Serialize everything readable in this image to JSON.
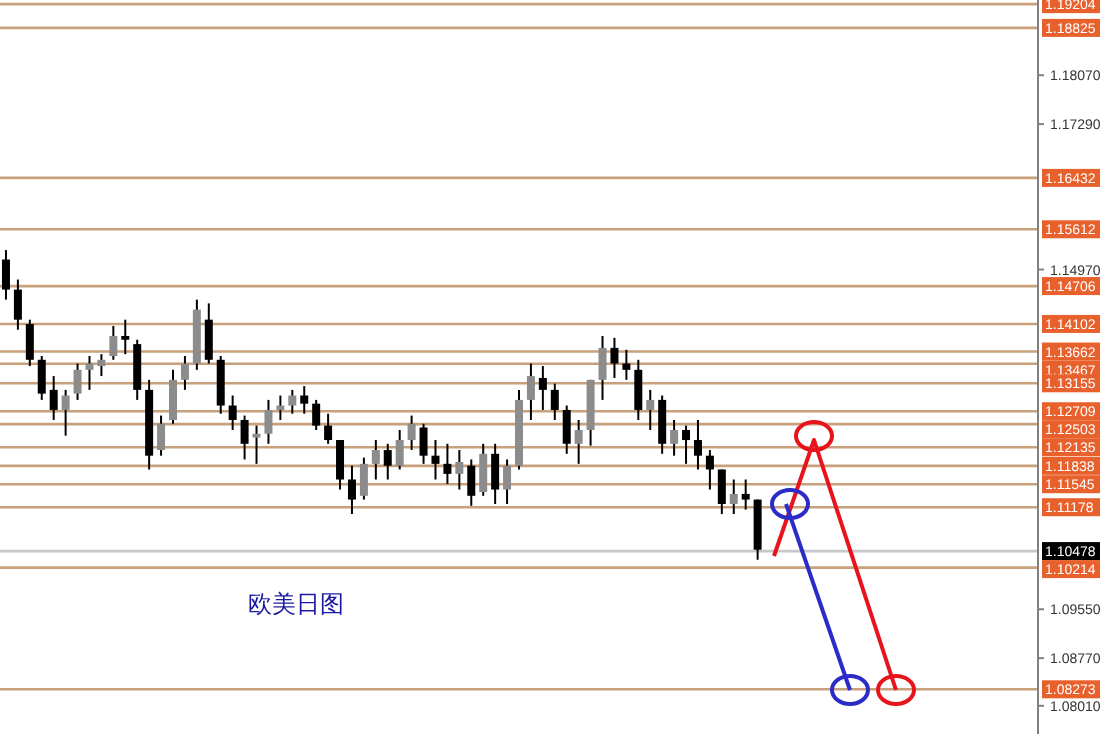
{
  "chart_data": {
    "type": "candlestick",
    "annotations": [
      "欧美日图"
    ],
    "tick_labels": "y",
    "grid": false,
    "categories": [
      null,
      null,
      null,
      null,
      null,
      null,
      null,
      null,
      null,
      null,
      null,
      null,
      null,
      null,
      null,
      null,
      null,
      null,
      null,
      null,
      null,
      null,
      null,
      null,
      null,
      null,
      null,
      null,
      null,
      null,
      null,
      null,
      null,
      null,
      null,
      null,
      null,
      null,
      null,
      null,
      null,
      null,
      null,
      null,
      null,
      null,
      null,
      null,
      null,
      null,
      null,
      null,
      null,
      null,
      null,
      null,
      null,
      null,
      null,
      null,
      null,
      null,
      null,
      null,
      null,
      null,
      null,
      null,
      null,
      null,
      null,
      null,
      null,
      null,
      null,
      null,
      null,
      null,
      null,
      null,
      null,
      null,
      null,
      null,
      null,
      null,
      null
    ],
    "ylim": [
      1.0756,
      1.1927
    ],
    "yticks": [
      {
        "value": 1.0801,
        "label": "1.08010"
      },
      {
        "value": 1.0877,
        "label": "1.08770"
      },
      {
        "value": 1.0955,
        "label": "1.09550"
      },
      {
        "value": 1.1497,
        "label": "1.14970"
      },
      {
        "value": 1.1729,
        "label": "1.17290"
      },
      {
        "value": 1.1807,
        "label": "1.18070"
      }
    ],
    "ohlc": [
      [
        1.1513,
        1.1528,
        1.1449,
        1.1465
      ],
      [
        1.1465,
        1.1481,
        1.1401,
        1.1417
      ],
      [
        1.141,
        1.1417,
        1.1343,
        1.1353
      ],
      [
        1.1353,
        1.1359,
        1.1289,
        1.1299
      ],
      [
        1.1305,
        1.1327,
        1.1257,
        1.1273
      ],
      [
        1.1273,
        1.1305,
        1.1232,
        1.1296
      ],
      [
        1.1299,
        1.1347,
        1.1289,
        1.1337
      ],
      [
        1.1337,
        1.1359,
        1.1305,
        1.1347
      ],
      [
        1.1343,
        1.1362,
        1.1327,
        1.1353
      ],
      [
        1.1359,
        1.1407,
        1.1353,
        1.1391
      ],
      [
        1.1391,
        1.1417,
        1.1362,
        1.1385
      ],
      [
        1.1378,
        1.1385,
        1.1289,
        1.1305
      ],
      [
        1.1305,
        1.1321,
        1.1178,
        1.12
      ],
      [
        1.1209,
        1.1264,
        1.12,
        1.1251
      ],
      [
        1.1257,
        1.1337,
        1.1251,
        1.1321
      ],
      [
        1.1321,
        1.1359,
        1.1305,
        1.1347
      ],
      [
        1.1347,
        1.1449,
        1.1337,
        1.1433
      ],
      [
        1.1417,
        1.1443,
        1.1347,
        1.1353
      ],
      [
        1.1353,
        1.1359,
        1.1267,
        1.128
      ],
      [
        1.128,
        1.1296,
        1.1241,
        1.1257
      ],
      [
        1.1257,
        1.1264,
        1.1194,
        1.1219
      ],
      [
        1.1229,
        1.1248,
        1.1187,
        1.1235
      ],
      [
        1.1235,
        1.1289,
        1.1219,
        1.1273
      ],
      [
        1.1273,
        1.1296,
        1.1257,
        1.128
      ],
      [
        1.128,
        1.1305,
        1.1267,
        1.1296
      ],
      [
        1.1296,
        1.1311,
        1.1267,
        1.1283
      ],
      [
        1.1283,
        1.1289,
        1.1241,
        1.1248
      ],
      [
        1.1248,
        1.1267,
        1.1219,
        1.1225
      ],
      [
        1.1225,
        1.1225,
        1.1146,
        1.1162
      ],
      [
        1.1162,
        1.1184,
        1.1107,
        1.113
      ],
      [
        1.1136,
        1.1197,
        1.113,
        1.1187
      ],
      [
        1.1187,
        1.1225,
        1.1162,
        1.1209
      ],
      [
        1.1209,
        1.1219,
        1.1162,
        1.1184
      ],
      [
        1.1184,
        1.1241,
        1.1178,
        1.1225
      ],
      [
        1.1225,
        1.1264,
        1.1209,
        1.1251
      ],
      [
        1.1245,
        1.1251,
        1.1187,
        1.12
      ],
      [
        1.12,
        1.1225,
        1.1162,
        1.1187
      ],
      [
        1.1187,
        1.1219,
        1.1155,
        1.1171
      ],
      [
        1.1171,
        1.1209,
        1.1146,
        1.119
      ],
      [
        1.1184,
        1.1194,
        1.112,
        1.1136
      ],
      [
        1.1142,
        1.1219,
        1.1136,
        1.1203
      ],
      [
        1.1203,
        1.1219,
        1.1123,
        1.1146
      ],
      [
        1.1146,
        1.1194,
        1.1123,
        1.1184
      ],
      [
        1.1184,
        1.1305,
        1.1178,
        1.1289
      ],
      [
        1.1289,
        1.1347,
        1.1257,
        1.1327
      ],
      [
        1.1324,
        1.1343,
        1.1273,
        1.1305
      ],
      [
        1.1305,
        1.1315,
        1.1257,
        1.1273
      ],
      [
        1.1273,
        1.128,
        1.1203,
        1.1219
      ],
      [
        1.1219,
        1.1257,
        1.1187,
        1.1241
      ],
      [
        1.1241,
        1.1321,
        1.1216,
        1.1321
      ],
      [
        1.1321,
        1.1391,
        1.1289,
        1.1372
      ],
      [
        1.1372,
        1.1388,
        1.1324,
        1.1347
      ],
      [
        1.1347,
        1.1369,
        1.1321,
        1.1337
      ],
      [
        1.1337,
        1.1353,
        1.1257,
        1.1273
      ],
      [
        1.1273,
        1.1305,
        1.1241,
        1.1289
      ],
      [
        1.1289,
        1.1296,
        1.1203,
        1.1219
      ],
      [
        1.1219,
        1.1257,
        1.12,
        1.1241
      ],
      [
        1.1241,
        1.1248,
        1.1187,
        1.1225
      ],
      [
        1.1225,
        1.1257,
        1.1178,
        1.12
      ],
      [
        1.12,
        1.1209,
        1.1146,
        1.1178
      ],
      [
        1.1178,
        1.1178,
        1.1107,
        1.1123
      ],
      [
        1.1123,
        1.1162,
        1.1107,
        1.1139
      ],
      [
        1.1139,
        1.1162,
        1.1114,
        1.113
      ],
      [
        1.113,
        1.113,
        1.1034,
        1.105
      ],
      null,
      null,
      null,
      null,
      null,
      null,
      null,
      null,
      null,
      null,
      null,
      null,
      null,
      null,
      null,
      null,
      null,
      null,
      null,
      null,
      null,
      null,
      null
    ],
    "ref_lines": [
      {
        "axis": "y",
        "value": 1.19204,
        "label": "1.19204",
        "color": "#c8a07c"
      },
      {
        "axis": "y",
        "value": 1.18825,
        "label": "1.18825",
        "color": "#c8a07c"
      },
      {
        "axis": "y",
        "value": 1.16432,
        "label": "1.16432",
        "color": "#c8a07c"
      },
      {
        "axis": "y",
        "value": 1.15612,
        "label": "1.15612",
        "color": "#c8a07c"
      },
      {
        "axis": "y",
        "value": 1.14706,
        "label": "1.14706",
        "color": "#c8a07c"
      },
      {
        "axis": "y",
        "value": 1.14102,
        "label": "1.14102",
        "color": "#c8a07c"
      },
      {
        "axis": "y",
        "value": 1.13662,
        "label": "1.13662",
        "color": "#c8a07c"
      },
      {
        "axis": "y",
        "value": 1.13467,
        "label": "1.13467",
        "color": "#c8a07c"
      },
      {
        "axis": "y",
        "value": 1.13155,
        "label": "1.13155",
        "color": "#c8a07c"
      },
      {
        "axis": "y",
        "value": 1.12709,
        "label": "1.12709",
        "color": "#c8a07c"
      },
      {
        "axis": "y",
        "value": 1.12503,
        "label": "1.12503",
        "color": "#c8a07c"
      },
      {
        "axis": "y",
        "value": 1.12135,
        "label": "1.12135",
        "color": "#c8a07c"
      },
      {
        "axis": "y",
        "value": 1.11838,
        "label": "1.11838",
        "color": "#c8a07c"
      },
      {
        "axis": "y",
        "value": 1.11545,
        "label": "1.11545",
        "color": "#c8a07c"
      },
      {
        "axis": "y",
        "value": 1.11178,
        "label": "1.11178",
        "color": "#c8a07c"
      },
      {
        "axis": "y",
        "value": 1.10478,
        "label": "1.10478",
        "color": "#c8c8c8"
      },
      {
        "axis": "y",
        "value": 1.10214,
        "label": "1.10214",
        "color": "#c8a07c"
      },
      {
        "axis": "y",
        "value": 1.08273,
        "label": "1.08273",
        "color": "#c8a07c"
      }
    ]
  }
}
